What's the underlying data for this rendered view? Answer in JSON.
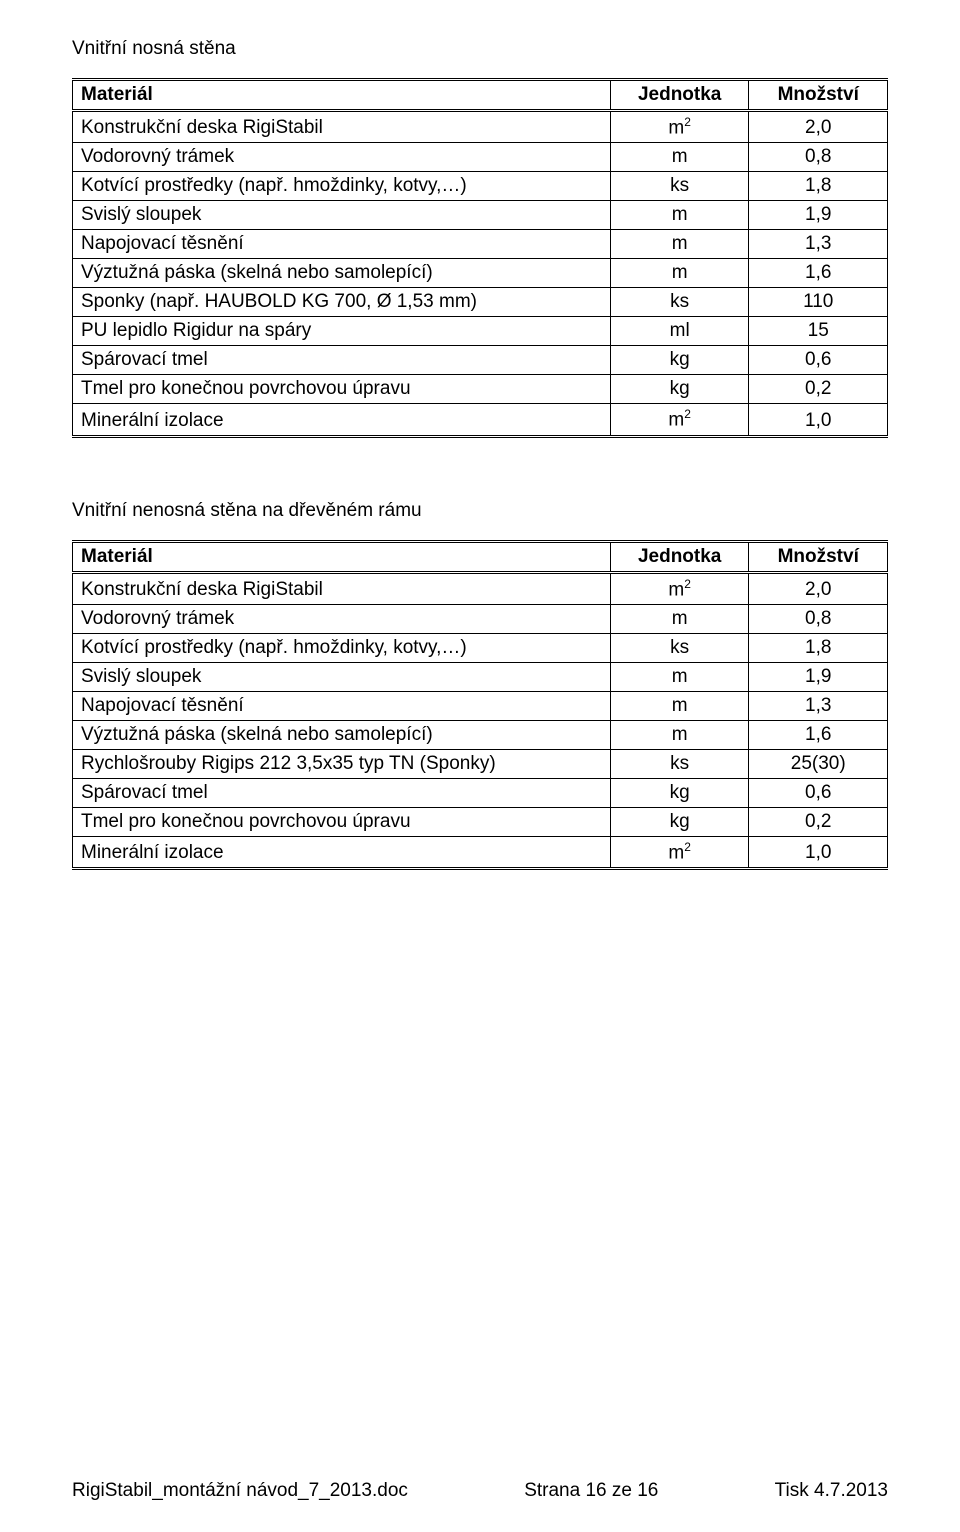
{
  "section1": {
    "title": "Vnitřní nosná stěna",
    "columns": {
      "material": "Materiál",
      "jednotka": "Jednotka",
      "mnozstvi": "Množství"
    },
    "rows": [
      {
        "material": "Konstrukční deska RigiStabil",
        "jednotka": "m²",
        "mnozstvi": "2,0"
      },
      {
        "material": "Vodorovný trámek",
        "jednotka": "m",
        "mnozstvi": "0,8"
      },
      {
        "material": "Kotvící prostředky (např. hmoždinky, kotvy,…)",
        "jednotka": "ks",
        "mnozstvi": "1,8"
      },
      {
        "material": "Svislý sloupek",
        "jednotka": "m",
        "mnozstvi": "1,9"
      },
      {
        "material": "Napojovací těsnění",
        "jednotka": "m",
        "mnozstvi": "1,3"
      },
      {
        "material": "Výztužná páska (skelná nebo samolepící)",
        "jednotka": "m",
        "mnozstvi": "1,6"
      },
      {
        "material": "Sponky (např. HAUBOLD KG 700, Ø 1,53 mm)",
        "jednotka": "ks",
        "mnozstvi": "110"
      },
      {
        "material": "PU lepidlo Rigidur na spáry",
        "jednotka": "ml",
        "mnozstvi": "15"
      },
      {
        "material": "Spárovací tmel",
        "jednotka": "kg",
        "mnozstvi": "0,6"
      },
      {
        "material": "Tmel pro konečnou povrchovou úpravu",
        "jednotka": "kg",
        "mnozstvi": "0,2"
      },
      {
        "material": "Minerální izolace",
        "jednotka": "m²",
        "mnozstvi": "1,0"
      }
    ]
  },
  "section2": {
    "title": "Vnitřní nenosná stěna na dřevěném rámu",
    "columns": {
      "material": "Materiál",
      "jednotka": "Jednotka",
      "mnozstvi": "Množství"
    },
    "rows": [
      {
        "material": "Konstrukční deska RigiStabil",
        "jednotka": "m²",
        "mnozstvi": "2,0"
      },
      {
        "material": "Vodorovný trámek",
        "jednotka": "m",
        "mnozstvi": "0,8"
      },
      {
        "material": "Kotvící prostředky (např. hmoždinky, kotvy,…)",
        "jednotka": "ks",
        "mnozstvi": "1,8"
      },
      {
        "material": "Svislý sloupek",
        "jednotka": "m",
        "mnozstvi": "1,9"
      },
      {
        "material": "Napojovací těsnění",
        "jednotka": "m",
        "mnozstvi": "1,3"
      },
      {
        "material": "Výztužná páska (skelná nebo samolepící)",
        "jednotka": "m",
        "mnozstvi": "1,6"
      },
      {
        "material": "Rychlošrouby Rigips 212 3,5x35 typ TN (Sponky)",
        "jednotka": "ks",
        "mnozstvi": "25(30)"
      },
      {
        "material": "Spárovací tmel",
        "jednotka": "kg",
        "mnozstvi": "0,6"
      },
      {
        "material": "Tmel pro konečnou povrchovou úpravu",
        "jednotka": "kg",
        "mnozstvi": "0,2"
      },
      {
        "material": "Minerální izolace",
        "jednotka": "m²",
        "mnozstvi": "1,0"
      }
    ]
  },
  "footer": {
    "left": "RigiStabil_montážní návod_7_2013.doc",
    "center": "Strana 16 ze 16",
    "right": "Tisk 4.7.2013"
  }
}
